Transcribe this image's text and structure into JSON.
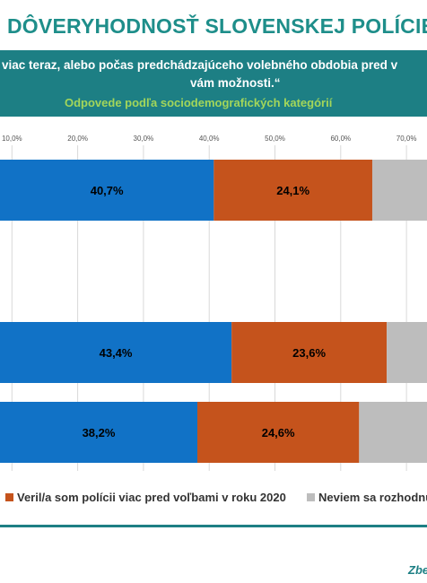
{
  "header": {
    "title": "DÔVERYHODNOSŤ SLOVENSKEJ POLÍCIE",
    "question_line1": "viac teraz, alebo počas predchádzajúceho volebného obdobia pred v",
    "question_line2": "vám možnosti.“",
    "subtitle": "Odpovede podľa sociodemografických kategórií"
  },
  "legend": {
    "items": [
      {
        "label": "Veril/a som polícii viac pred voľbami v roku 2020",
        "color": "#c5531c"
      },
      {
        "label": "Neviem sa rozhodnú",
        "color": "#bdbdbd"
      }
    ]
  },
  "footer": {
    "source": "Zbe"
  },
  "colors": {
    "blue": "#1172c6",
    "orange": "#c5531c",
    "gray": "#bdbdbd",
    "grid": "#d9d9d9",
    "teal": "#1d7f84"
  },
  "chart_data": {
    "type": "bar",
    "orientation": "horizontal",
    "stacked": true,
    "x_ticks": [
      "10,0%",
      "20,0%",
      "30,0%",
      "40,0%",
      "50,0%",
      "60,0%",
      "70,0%"
    ],
    "xlim": [
      0,
      80
    ],
    "grid": true,
    "legend_position": "bottom",
    "bars": [
      {
        "values": [
          40.7,
          24.1,
          15
        ],
        "labels": [
          "40,7%",
          "24,1%",
          ""
        ]
      },
      {
        "values": [
          43.4,
          23.6,
          13
        ],
        "labels": [
          "43,4%",
          "23,6%",
          ""
        ]
      },
      {
        "values": [
          38.2,
          24.6,
          17
        ],
        "labels": [
          "38,2%",
          "24,6%",
          ""
        ]
      }
    ]
  }
}
